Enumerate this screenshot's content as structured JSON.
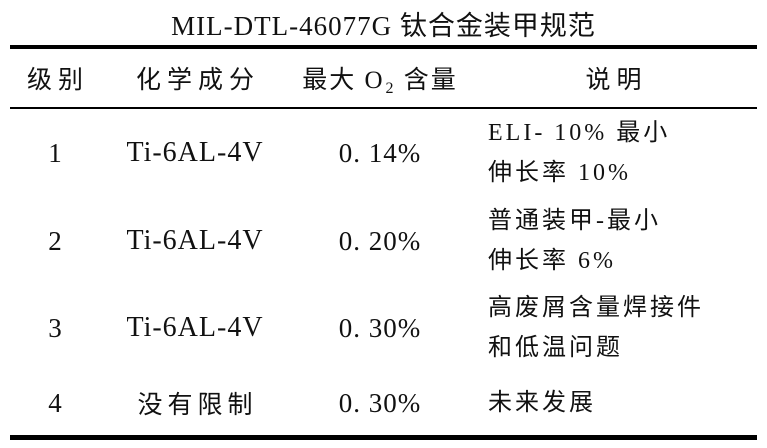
{
  "title": "MIL-DTL-46077G 钛合金装甲规范",
  "colors": {
    "background": "#ffffff",
    "text": "#111111",
    "rule": "#000000"
  },
  "table": {
    "headers": {
      "grade": "级别",
      "composition": "化学成分",
      "o2_pre": "最大 O",
      "o2_sub": "2",
      "o2_post": " 含量",
      "description": "说明"
    },
    "rows": [
      {
        "grade": "1",
        "composition": "Ti-6AL-4V",
        "max_o2": "0. 14%",
        "desc_line1": "ELI- 10% 最小",
        "desc_line2": "伸长率 10%"
      },
      {
        "grade": "2",
        "composition": "Ti-6AL-4V",
        "max_o2": "0. 20%",
        "desc_line1": "普通装甲-最小",
        "desc_line2": "伸长率 6%"
      },
      {
        "grade": "3",
        "composition": "Ti-6AL-4V",
        "max_o2": "0. 30%",
        "desc_line1": "高废屑含量焊接件",
        "desc_line2": "和低温问题"
      },
      {
        "grade": "4",
        "composition": "没有限制",
        "max_o2": "0. 30%",
        "desc_line1": "未来发展"
      }
    ]
  }
}
